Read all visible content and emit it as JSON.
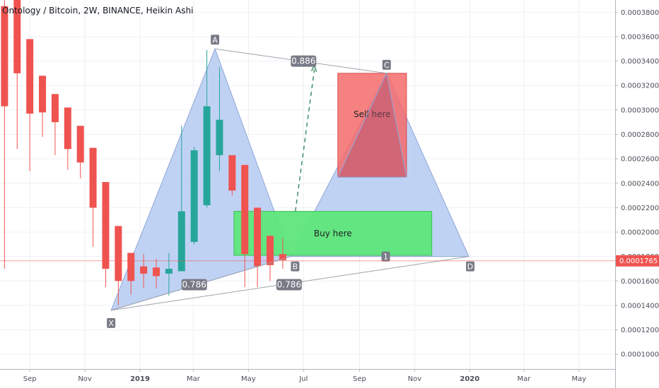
{
  "title": "Ontology / Bitcoin, 2W, BINANCE, Heikin Ashi",
  "colors": {
    "up": "#26a69a",
    "down": "#ef5350",
    "pattern_fill": "#b9cdf3",
    "buy_box": "#5ee67a",
    "sell_box": "#f56b6b",
    "label_bg": "#787b86",
    "last_price": "#ef5350",
    "grid": "#eef0f4",
    "axis_text": "#4a4e59"
  },
  "chart_data": {
    "type": "candlestick",
    "y_axis": {
      "ylim": [
        8.8e-05,
        0.00039
      ],
      "ticks": [
        "0.0001000",
        "0.0001200",
        "0.0001400",
        "0.0001600",
        "0.0001800",
        "0.0002000",
        "0.0002200",
        "0.0002400",
        "0.0002600",
        "0.0002800",
        "0.0003000",
        "0.0003200",
        "0.0003400",
        "0.0003600",
        "0.0003800"
      ],
      "last_price_label": "0.0001765",
      "last_price": 0.0001765
    },
    "x_axis": {
      "start": "2018-07-30",
      "end": "2020-06-10",
      "ticks": [
        {
          "date": "2018-09-01",
          "label": "Sep"
        },
        {
          "date": "2018-11-01",
          "label": "Nov"
        },
        {
          "date": "2019-01-01",
          "label": "2019"
        },
        {
          "date": "2019-03-01",
          "label": "Mar"
        },
        {
          "date": "2019-05-01",
          "label": "May"
        },
        {
          "date": "2019-07-01",
          "label": "Jul"
        },
        {
          "date": "2019-09-01",
          "label": "Sep"
        },
        {
          "date": "2019-11-01",
          "label": "Nov"
        },
        {
          "date": "2020-01-01",
          "label": "2020"
        },
        {
          "date": "2020-03-01",
          "label": "Mar"
        },
        {
          "date": "2020-05-01",
          "label": "May"
        }
      ]
    },
    "candles": [
      {
        "date": "2018-08-04",
        "o": 0.000385,
        "h": 0.00039,
        "l": 0.00017,
        "c": 0.000303
      },
      {
        "date": "2018-08-18",
        "o": 0.00039,
        "h": 0.00039,
        "l": 0.000268,
        "c": 0.00033
      },
      {
        "date": "2018-09-01",
        "o": 0.000358,
        "h": 0.000358,
        "l": 0.00025,
        "c": 0.000297
      },
      {
        "date": "2018-09-15",
        "o": 0.000328,
        "h": 0.000328,
        "l": 0.000278,
        "c": 0.000298
      },
      {
        "date": "2018-09-29",
        "o": 0.000313,
        "h": 0.000313,
        "l": 0.000263,
        "c": 0.00029
      },
      {
        "date": "2018-10-13",
        "o": 0.000302,
        "h": 0.000302,
        "l": 0.000251,
        "c": 0.000268
      },
      {
        "date": "2018-10-27",
        "o": 0.000287,
        "h": 0.000287,
        "l": 0.000244,
        "c": 0.000257
      },
      {
        "date": "2018-11-10",
        "o": 0.000269,
        "h": 0.000269,
        "l": 0.000188,
        "c": 0.00022
      },
      {
        "date": "2018-11-24",
        "o": 0.000241,
        "h": 0.000241,
        "l": 0.000155,
        "c": 0.00017
      },
      {
        "date": "2018-12-08",
        "o": 0.000205,
        "h": 0.000205,
        "l": 0.00014,
        "c": 0.00016
      },
      {
        "date": "2018-12-22",
        "o": 0.000183,
        "h": 0.000183,
        "l": 0.000149,
        "c": 0.00016
      },
      {
        "date": "2019-01-05",
        "o": 0.000172,
        "h": 0.000182,
        "l": 0.000154,
        "c": 0.000166
      },
      {
        "date": "2019-01-19",
        "o": 0.000171,
        "h": 0.000178,
        "l": 0.000154,
        "c": 0.000164
      },
      {
        "date": "2019-02-02",
        "o": 0.000166,
        "h": 0.000183,
        "l": 0.000148,
        "c": 0.00017
      },
      {
        "date": "2019-02-16",
        "o": 0.000168,
        "h": 0.000287,
        "l": 0.000168,
        "c": 0.000217
      },
      {
        "date": "2019-03-02",
        "o": 0.000192,
        "h": 0.00027,
        "l": 0.00019,
        "c": 0.000267
      },
      {
        "date": "2019-03-16",
        "o": 0.000222,
        "h": 0.000349,
        "l": 0.00022,
        "c": 0.000303
      },
      {
        "date": "2019-03-30",
        "o": 0.000263,
        "h": 0.000335,
        "l": 0.00025,
        "c": 0.000292
      },
      {
        "date": "2019-04-13",
        "o": 0.000263,
        "h": 0.000263,
        "l": 0.00023,
        "c": 0.000234
      },
      {
        "date": "2019-04-27",
        "o": 0.000255,
        "h": 0.000255,
        "l": 0.000155,
        "c": 0.000182
      },
      {
        "date": "2019-05-11",
        "o": 0.00022,
        "h": 0.00022,
        "l": 0.000155,
        "c": 0.000172
      },
      {
        "date": "2019-05-25",
        "o": 0.000197,
        "h": 0.000197,
        "l": 0.00016,
        "c": 0.000173
      },
      {
        "date": "2019-06-08",
        "o": 0.000182,
        "h": 0.000195,
        "l": 0.00017,
        "c": 0.000177
      }
    ],
    "pattern": {
      "points": {
        "X": {
          "date": "2018-11-30",
          "price": 0.000136
        },
        "A": {
          "date": "2019-03-25",
          "price": 0.00035
        },
        "B": {
          "date": "2019-06-17",
          "price": 0.00018
        },
        "C": {
          "date": "2019-10-01",
          "price": 0.00033
        },
        "D": {
          "date": "2019-12-31",
          "price": 0.00018
        }
      },
      "labels": [
        "X",
        "A",
        "B",
        "C",
        "D"
      ],
      "ratios": [
        {
          "text": "0.886",
          "date": "2019-07-01",
          "price": 0.00034
        },
        {
          "text": "0.786",
          "date": "2019-03-02",
          "price": 0.000157
        },
        {
          "text": "0.786",
          "date": "2019-06-15",
          "price": 0.000157
        }
      ],
      "mid_label": {
        "text": "1",
        "date": "2019-09-30",
        "price": 0.00018
      }
    },
    "zones": [
      {
        "name": "buy",
        "label": "Buy here",
        "date_from": "2019-04-15",
        "date_to": "2019-11-20",
        "price_low": 0.000181,
        "price_high": 0.000217
      },
      {
        "name": "sell",
        "label": "Sell here",
        "date_from": "2019-08-08",
        "date_to": "2019-10-23",
        "price_low": 0.000245,
        "price_high": 0.00033
      }
    ],
    "projection": {
      "from_date": "2019-06-22",
      "from_price": 0.000217,
      "to_date": "2019-07-13",
      "to_price": 0.000333
    }
  }
}
